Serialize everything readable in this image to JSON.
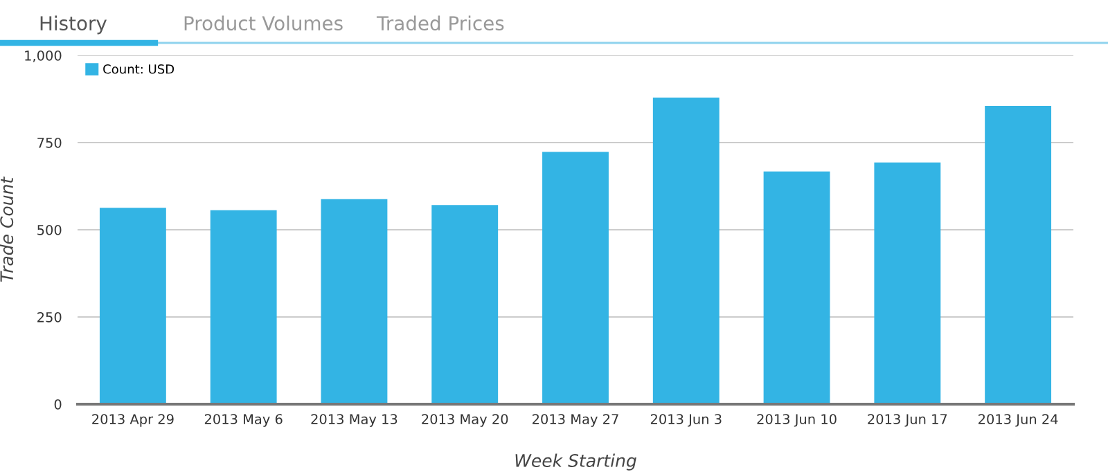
{
  "chart_data": {
    "type": "bar",
    "xlabel": "Week Starting",
    "ylabel": "Trade Count",
    "annotations": [
      "History",
      "Product Volumes",
      "Traded Prices"
    ],
    "categories": [
      "2013 Apr 29",
      "2013 May 6",
      "2013 May 13",
      "2013 May 20",
      "2013 May 27",
      "2013 Jun 3",
      "2013 Jun 10",
      "2013 Jun 17",
      "2013 Jun 24"
    ],
    "series": [
      {
        "name": "Count: USD",
        "color": "#33b4e4",
        "values": [
          563,
          556,
          588,
          571,
          723,
          879,
          667,
          693,
          855
        ]
      }
    ],
    "ylim": [
      0,
      1000
    ],
    "yticks": [
      0,
      250,
      500,
      750,
      {
        "value": 1000,
        "label": "1,000"
      }
    ],
    "grid": "y",
    "legend": "top left"
  }
}
